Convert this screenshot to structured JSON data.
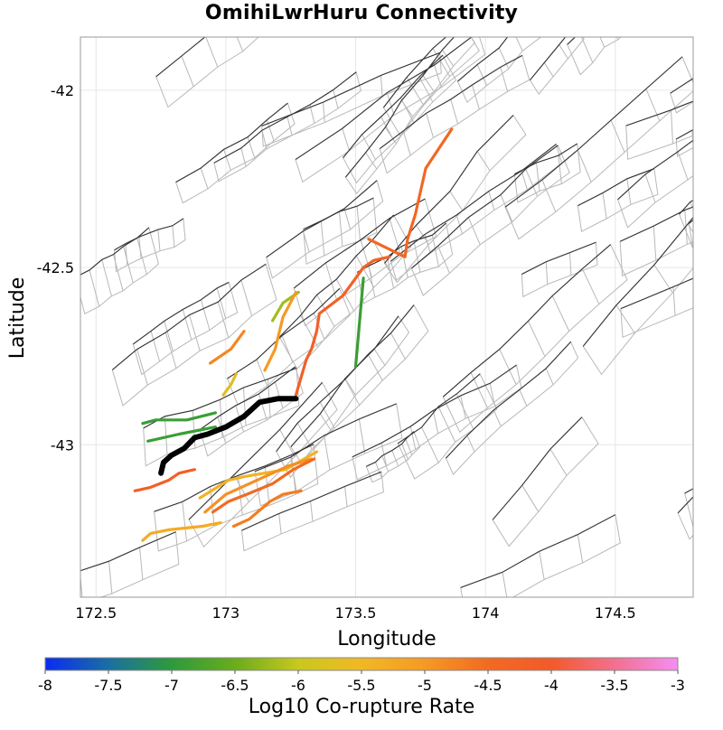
{
  "title": "OmihiLwrHuru Connectivity",
  "axes": {
    "xlabel": "Longitude",
    "ylabel": "Latitude",
    "xticks": [
      172.5,
      173,
      173.5,
      174,
      174.5
    ],
    "xtick_labels": [
      "172.5",
      "173",
      "173.5",
      "174",
      "174.5"
    ],
    "yticks": [
      -42,
      -42.5,
      -43
    ],
    "ytick_labels": [
      "-42",
      "-42.5",
      "-43"
    ],
    "xlim": [
      172.44,
      174.8
    ],
    "ylim": [
      -43.43,
      -41.85
    ]
  },
  "colorbar": {
    "label": "Log10 Co-rupture Rate",
    "min": -8,
    "max": -3,
    "ticks": [
      "-8",
      "-7.5",
      "-7",
      "-6.5",
      "-6",
      "-5.5",
      "-5",
      "-4.5",
      "-4",
      "-3.5",
      "-3"
    ],
    "stops": [
      "#0a2cf2",
      "#1a6fa2",
      "#2e9a3c",
      "#6aac1c",
      "#c8c81e",
      "#f2b824",
      "#f49a24",
      "#f26a22",
      "#f25a2a",
      "#f27090",
      "#f48ef2"
    ]
  },
  "colors": {
    "source_fault": "#000000",
    "fault_trace": "#333333",
    "section_outline": "#b8b8b8",
    "grid": "#e6e6e6"
  },
  "source_fault": {
    "name": "OmihiLwrHuru",
    "trace": [
      [
        172.75,
        -43.08
      ],
      [
        172.76,
        -43.05
      ],
      [
        172.79,
        -43.03
      ],
      [
        172.84,
        -43.01
      ],
      [
        172.88,
        -42.98
      ],
      [
        172.93,
        -42.97
      ],
      [
        173.0,
        -42.95
      ],
      [
        173.07,
        -42.92
      ],
      [
        173.13,
        -42.88
      ],
      [
        173.2,
        -42.87
      ],
      [
        173.27,
        -42.87
      ]
    ]
  },
  "ruptures": [
    {
      "log10_rate": -4.4,
      "trace": [
        [
          173.55,
          -42.42
        ],
        [
          173.69,
          -42.47
        ],
        [
          173.7,
          -42.42
        ],
        [
          173.73,
          -42.35
        ],
        [
          173.77,
          -42.22
        ],
        [
          173.87,
          -42.11
        ]
      ]
    },
    {
      "log10_rate": -4.2,
      "trace": [
        [
          173.27,
          -42.86
        ],
        [
          173.31,
          -42.76
        ],
        [
          173.33,
          -42.73
        ],
        [
          173.35,
          -42.68
        ],
        [
          173.36,
          -42.63
        ],
        [
          173.45,
          -42.58
        ],
        [
          173.49,
          -42.54
        ]
      ]
    },
    {
      "log10_rate": -4.3,
      "trace": [
        [
          173.49,
          -42.54
        ],
        [
          173.53,
          -42.5
        ],
        [
          173.57,
          -42.48
        ],
        [
          173.63,
          -42.47
        ]
      ]
    },
    {
      "log10_rate": -6.9,
      "trace": [
        [
          173.53,
          -42.53
        ],
        [
          173.5,
          -42.78
        ]
      ]
    },
    {
      "log10_rate": -6.2,
      "trace": [
        [
          173.28,
          -42.57
        ],
        [
          173.22,
          -42.6
        ],
        [
          173.18,
          -42.65
        ]
      ]
    },
    {
      "log10_rate": -5.0,
      "trace": [
        [
          173.15,
          -42.79
        ],
        [
          173.19,
          -42.73
        ],
        [
          173.22,
          -42.64
        ],
        [
          173.27,
          -42.57
        ]
      ]
    },
    {
      "log10_rate": -4.8,
      "trace": [
        [
          172.94,
          -42.77
        ],
        [
          173.02,
          -42.73
        ],
        [
          173.07,
          -42.68
        ]
      ]
    },
    {
      "log10_rate": -5.7,
      "trace": [
        [
          172.99,
          -42.86
        ],
        [
          173.02,
          -42.83
        ],
        [
          173.04,
          -42.8
        ]
      ]
    },
    {
      "log10_rate": -6.9,
      "trace": [
        [
          172.68,
          -42.94
        ],
        [
          172.73,
          -42.93
        ],
        [
          172.85,
          -42.93
        ],
        [
          172.96,
          -42.91
        ]
      ]
    },
    {
      "log10_rate": -6.9,
      "trace": [
        [
          172.7,
          -42.99
        ],
        [
          172.82,
          -42.97
        ],
        [
          172.96,
          -42.95
        ]
      ]
    },
    {
      "log10_rate": -4.2,
      "trace": [
        [
          172.65,
          -43.13
        ],
        [
          172.71,
          -43.12
        ],
        [
          172.78,
          -43.1
        ],
        [
          172.82,
          -43.08
        ],
        [
          172.88,
          -43.07
        ]
      ]
    },
    {
      "log10_rate": -5.4,
      "trace": [
        [
          172.9,
          -43.15
        ],
        [
          173.01,
          -43.1
        ],
        [
          173.07,
          -43.09
        ],
        [
          173.23,
          -43.07
        ],
        [
          173.35,
          -43.02
        ]
      ]
    },
    {
      "log10_rate": -4.9,
      "trace": [
        [
          172.92,
          -43.19
        ],
        [
          173.0,
          -43.14
        ],
        [
          173.15,
          -43.09
        ],
        [
          173.24,
          -43.06
        ],
        [
          173.33,
          -43.04
        ]
      ]
    },
    {
      "log10_rate": -4.5,
      "trace": [
        [
          172.95,
          -43.19
        ],
        [
          173.01,
          -43.16
        ],
        [
          173.08,
          -43.14
        ],
        [
          173.18,
          -43.11
        ],
        [
          173.26,
          -43.07
        ],
        [
          173.34,
          -43.04
        ]
      ]
    },
    {
      "log10_rate": -4.7,
      "trace": [
        [
          173.03,
          -43.23
        ],
        [
          173.09,
          -43.21
        ],
        [
          173.17,
          -43.16
        ],
        [
          173.22,
          -43.14
        ],
        [
          173.29,
          -43.13
        ]
      ]
    },
    {
      "log10_rate": -5.3,
      "trace": [
        [
          172.68,
          -43.27
        ],
        [
          172.71,
          -43.25
        ],
        [
          172.78,
          -43.24
        ],
        [
          172.91,
          -43.23
        ],
        [
          172.98,
          -43.22
        ]
      ]
    }
  ]
}
